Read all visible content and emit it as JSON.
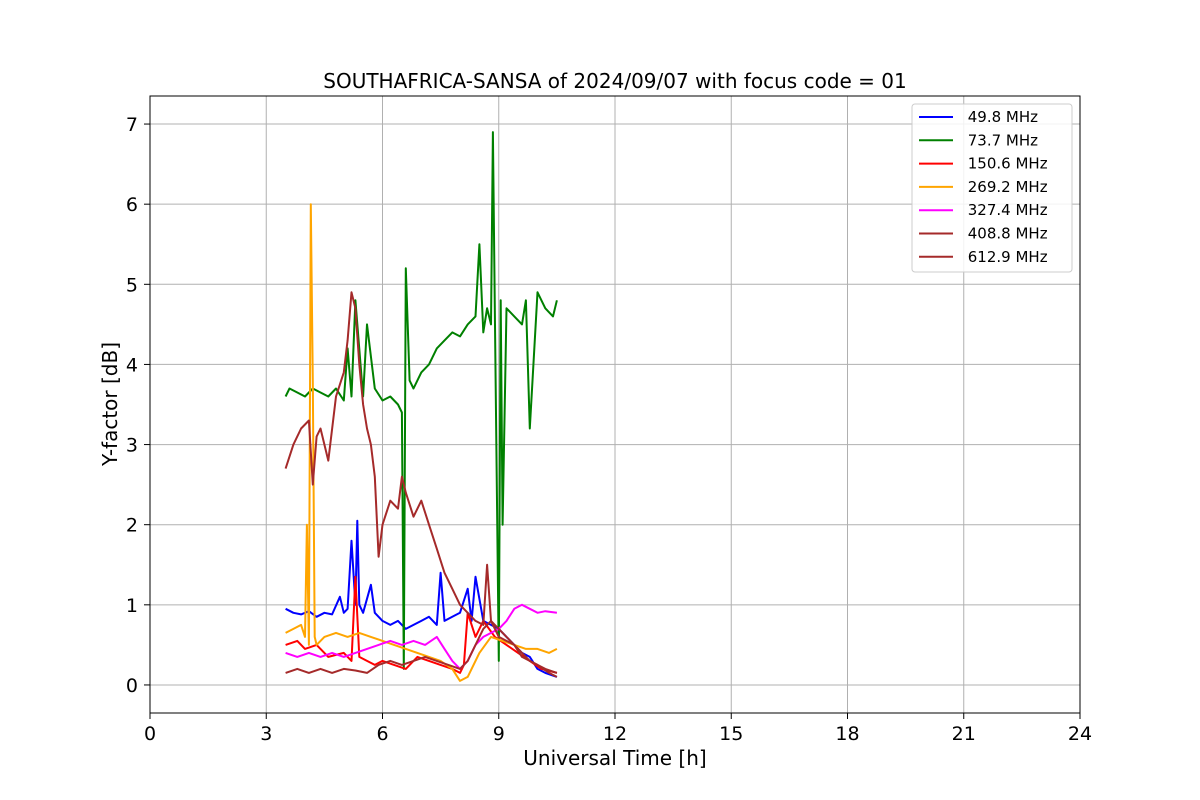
{
  "chart_data": {
    "type": "line",
    "title": "SOUTHAFRICA-SANSA of 2024/09/07 with focus code = 01",
    "xlabel": "Universal Time [h]",
    "ylabel": "Y-factor [dB]",
    "xlim": [
      0,
      24
    ],
    "ylim": [
      -0.35,
      7.35
    ],
    "xticks": [
      0,
      3,
      6,
      9,
      12,
      15,
      18,
      21,
      24
    ],
    "xtick_labels": [
      "0",
      "3",
      "6",
      "9",
      "12",
      "15",
      "18",
      "21",
      "24"
    ],
    "yticks": [
      0,
      1,
      2,
      3,
      4,
      5,
      6,
      7
    ],
    "ytick_labels": [
      "0",
      "1",
      "2",
      "3",
      "4",
      "5",
      "6",
      "7"
    ],
    "grid": true,
    "legend_position": "top-right",
    "series": [
      {
        "name": " 49.8 MHz",
        "color": "#0000ff",
        "x": [
          3.5,
          3.7,
          3.9,
          4.1,
          4.3,
          4.5,
          4.7,
          4.9,
          5.0,
          5.1,
          5.2,
          5.3,
          5.35,
          5.4,
          5.5,
          5.7,
          5.8,
          5.9,
          6.0,
          6.2,
          6.4,
          6.6,
          6.8,
          7.0,
          7.2,
          7.4,
          7.5,
          7.6,
          7.8,
          8.0,
          8.2,
          8.3,
          8.4,
          8.6,
          8.8,
          9.0,
          9.2,
          9.4,
          9.6,
          9.8,
          10.0,
          10.2,
          10.5
        ],
        "y": [
          0.95,
          0.9,
          0.88,
          0.92,
          0.85,
          0.9,
          0.88,
          1.1,
          0.9,
          0.95,
          1.8,
          1.0,
          2.05,
          1.0,
          0.9,
          1.25,
          0.9,
          0.85,
          0.8,
          0.75,
          0.8,
          0.7,
          0.75,
          0.8,
          0.85,
          0.75,
          1.4,
          0.8,
          0.85,
          0.9,
          1.2,
          0.8,
          1.35,
          0.8,
          0.75,
          0.7,
          0.6,
          0.5,
          0.4,
          0.35,
          0.2,
          0.15,
          0.1
        ]
      },
      {
        "name": " 73.7 MHz",
        "color": "#008000",
        "x": [
          3.5,
          3.6,
          3.8,
          4.0,
          4.2,
          4.4,
          4.6,
          4.8,
          5.0,
          5.1,
          5.2,
          5.3,
          5.5,
          5.6,
          5.8,
          6.0,
          6.2,
          6.4,
          6.5,
          6.55,
          6.6,
          6.7,
          6.8,
          7.0,
          7.2,
          7.4,
          7.6,
          7.8,
          8.0,
          8.2,
          8.4,
          8.5,
          8.6,
          8.7,
          8.8,
          8.85,
          8.9,
          9.0,
          9.05,
          9.1,
          9.2,
          9.4,
          9.6,
          9.7,
          9.8,
          10.0,
          10.2,
          10.4,
          10.5
        ],
        "y": [
          3.6,
          3.7,
          3.65,
          3.6,
          3.7,
          3.65,
          3.6,
          3.7,
          3.55,
          4.2,
          3.6,
          4.8,
          3.6,
          4.5,
          3.7,
          3.55,
          3.6,
          3.5,
          3.4,
          0.2,
          5.2,
          3.8,
          3.7,
          3.9,
          4.0,
          4.2,
          4.3,
          4.4,
          4.35,
          4.5,
          4.6,
          5.5,
          4.4,
          4.7,
          4.5,
          6.9,
          4.6,
          0.3,
          4.8,
          2.0,
          4.7,
          4.6,
          4.5,
          4.8,
          3.2,
          4.9,
          4.7,
          4.6,
          4.8
        ]
      },
      {
        "name": " 150.6 MHz",
        "color": "#ff0000",
        "x": [
          3.5,
          3.8,
          4.0,
          4.3,
          4.6,
          5.0,
          5.2,
          5.3,
          5.4,
          5.6,
          5.8,
          6.0,
          6.3,
          6.6,
          6.9,
          7.2,
          7.5,
          7.8,
          8.0,
          8.1,
          8.2,
          8.4,
          8.6,
          8.9,
          9.2,
          9.5,
          9.8,
          10.1,
          10.5
        ],
        "y": [
          0.5,
          0.55,
          0.45,
          0.5,
          0.35,
          0.4,
          0.3,
          1.35,
          0.35,
          0.3,
          0.25,
          0.3,
          0.25,
          0.2,
          0.35,
          0.3,
          0.25,
          0.2,
          0.15,
          0.25,
          0.9,
          0.6,
          0.8,
          0.6,
          0.5,
          0.4,
          0.3,
          0.2,
          0.15
        ]
      },
      {
        "name": " 269.2 MHz",
        "color": "#ffa500",
        "x": [
          3.5,
          3.7,
          3.9,
          4.0,
          4.05,
          4.1,
          4.15,
          4.2,
          4.25,
          4.3,
          4.5,
          4.8,
          5.1,
          5.4,
          5.7,
          6.0,
          6.3,
          6.6,
          6.9,
          7.2,
          7.5,
          7.8,
          8.0,
          8.2,
          8.5,
          8.8,
          9.1,
          9.4,
          9.7,
          10.0,
          10.3,
          10.5
        ],
        "y": [
          0.65,
          0.7,
          0.75,
          0.6,
          2.0,
          0.5,
          6.0,
          3.8,
          0.6,
          0.5,
          0.6,
          0.65,
          0.6,
          0.65,
          0.6,
          0.55,
          0.5,
          0.45,
          0.4,
          0.35,
          0.3,
          0.2,
          0.05,
          0.1,
          0.4,
          0.6,
          0.55,
          0.5,
          0.45,
          0.45,
          0.4,
          0.45
        ]
      },
      {
        "name": " 327.4 MHz",
        "color": "#ff00ff",
        "x": [
          3.5,
          3.8,
          4.1,
          4.4,
          4.7,
          5.0,
          5.3,
          5.6,
          5.9,
          6.2,
          6.5,
          6.8,
          7.1,
          7.4,
          7.6,
          7.8,
          8.0,
          8.2,
          8.4,
          8.6,
          8.8,
          9.0,
          9.2,
          9.4,
          9.6,
          9.8,
          10.0,
          10.2,
          10.5
        ],
        "y": [
          0.4,
          0.35,
          0.4,
          0.35,
          0.4,
          0.35,
          0.4,
          0.45,
          0.5,
          0.55,
          0.5,
          0.55,
          0.5,
          0.6,
          0.45,
          0.3,
          0.2,
          0.3,
          0.5,
          0.6,
          0.65,
          0.7,
          0.8,
          0.95,
          1.0,
          0.95,
          0.9,
          0.92,
          0.9
        ]
      },
      {
        "name": " 408.8 MHz",
        "color": "#a52a2a",
        "x": [
          3.5,
          3.7,
          3.9,
          4.1,
          4.2,
          4.3,
          4.4,
          4.6,
          4.8,
          5.0,
          5.1,
          5.2,
          5.3,
          5.4,
          5.5,
          5.6,
          5.7,
          5.8,
          5.9,
          6.0,
          6.2,
          6.4,
          6.5,
          6.6,
          6.8,
          7.0,
          7.2,
          7.4,
          7.6,
          7.8,
          8.0,
          8.2,
          8.4,
          8.6,
          8.7,
          8.8,
          8.9,
          9.0,
          9.2,
          9.4,
          9.6,
          9.8,
          10.0,
          10.2,
          10.5
        ],
        "y": [
          2.7,
          3.0,
          3.2,
          3.3,
          2.5,
          3.1,
          3.2,
          2.8,
          3.6,
          3.9,
          4.3,
          4.9,
          4.7,
          4.0,
          3.5,
          3.2,
          3.0,
          2.6,
          1.6,
          2.0,
          2.3,
          2.2,
          2.6,
          2.4,
          2.1,
          2.3,
          2.0,
          1.7,
          1.4,
          1.2,
          1.0,
          0.9,
          0.8,
          0.75,
          1.5,
          0.8,
          0.7,
          0.6,
          0.55,
          0.5,
          0.35,
          0.3,
          0.25,
          0.2,
          0.15
        ]
      },
      {
        "name": " 612.9 MHz",
        "color": "#a52a2a",
        "x": [
          3.5,
          3.8,
          4.1,
          4.4,
          4.7,
          5.0,
          5.3,
          5.6,
          5.9,
          6.2,
          6.5,
          6.8,
          7.1,
          7.4,
          7.7,
          8.0,
          8.2,
          8.4,
          8.6,
          8.8,
          9.0,
          9.2,
          9.4,
          9.6,
          9.8,
          10.0,
          10.3,
          10.5
        ],
        "y": [
          0.15,
          0.2,
          0.15,
          0.2,
          0.15,
          0.2,
          0.18,
          0.15,
          0.25,
          0.3,
          0.25,
          0.3,
          0.35,
          0.3,
          0.25,
          0.2,
          0.3,
          0.5,
          0.7,
          0.8,
          0.7,
          0.6,
          0.5,
          0.4,
          0.3,
          0.25,
          0.15,
          0.1
        ]
      }
    ]
  }
}
